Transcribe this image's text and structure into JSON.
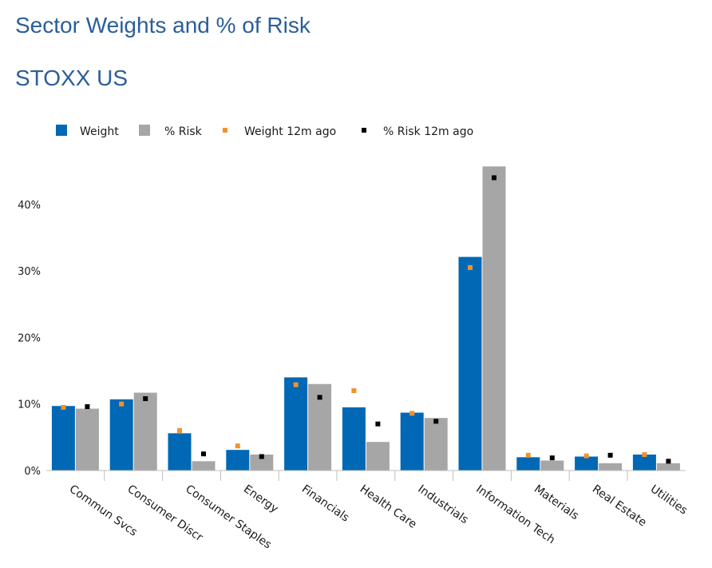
{
  "title": "Sector Weights and % of Risk",
  "subtitle": "STOXX US",
  "chart_data": {
    "type": "bar",
    "categories": [
      "Commun Svcs",
      "Consumer Discr",
      "Consumer Staples",
      "Energy",
      "Financials",
      "Health Care",
      "Industrials",
      "Information Tech",
      "Materials",
      "Real Estate",
      "Utilities"
    ],
    "series": [
      {
        "name": "Weight",
        "kind": "bar",
        "color": "#0068b4",
        "values": [
          9.7,
          10.7,
          5.6,
          3.1,
          14.0,
          9.5,
          8.7,
          32.1,
          2.0,
          2.1,
          2.4
        ]
      },
      {
        "name": "% Risk",
        "kind": "bar",
        "color": "#a6a6a6",
        "values": [
          9.3,
          11.7,
          1.4,
          2.4,
          13.0,
          4.3,
          7.9,
          45.7,
          1.5,
          1.1,
          1.1
        ]
      },
      {
        "name": "Weight 12m ago",
        "kind": "marker",
        "color": "#f0922e",
        "values": [
          9.5,
          10.0,
          6.0,
          3.7,
          12.9,
          12.0,
          8.6,
          30.5,
          2.3,
          2.2,
          2.4
        ]
      },
      {
        "name": "% Risk 12m ago",
        "kind": "marker",
        "color": "#000000",
        "values": [
          9.6,
          10.8,
          2.5,
          2.1,
          11.0,
          7.0,
          7.4,
          44.0,
          1.9,
          2.3,
          1.4
        ]
      }
    ],
    "yticks": [
      0,
      10,
      20,
      30,
      40
    ],
    "tick_labels": [
      "0%",
      "10%",
      "20%",
      "30%",
      "40%"
    ],
    "ylim": [
      0,
      47
    ],
    "legend_position": "top-left",
    "grid": false
  }
}
